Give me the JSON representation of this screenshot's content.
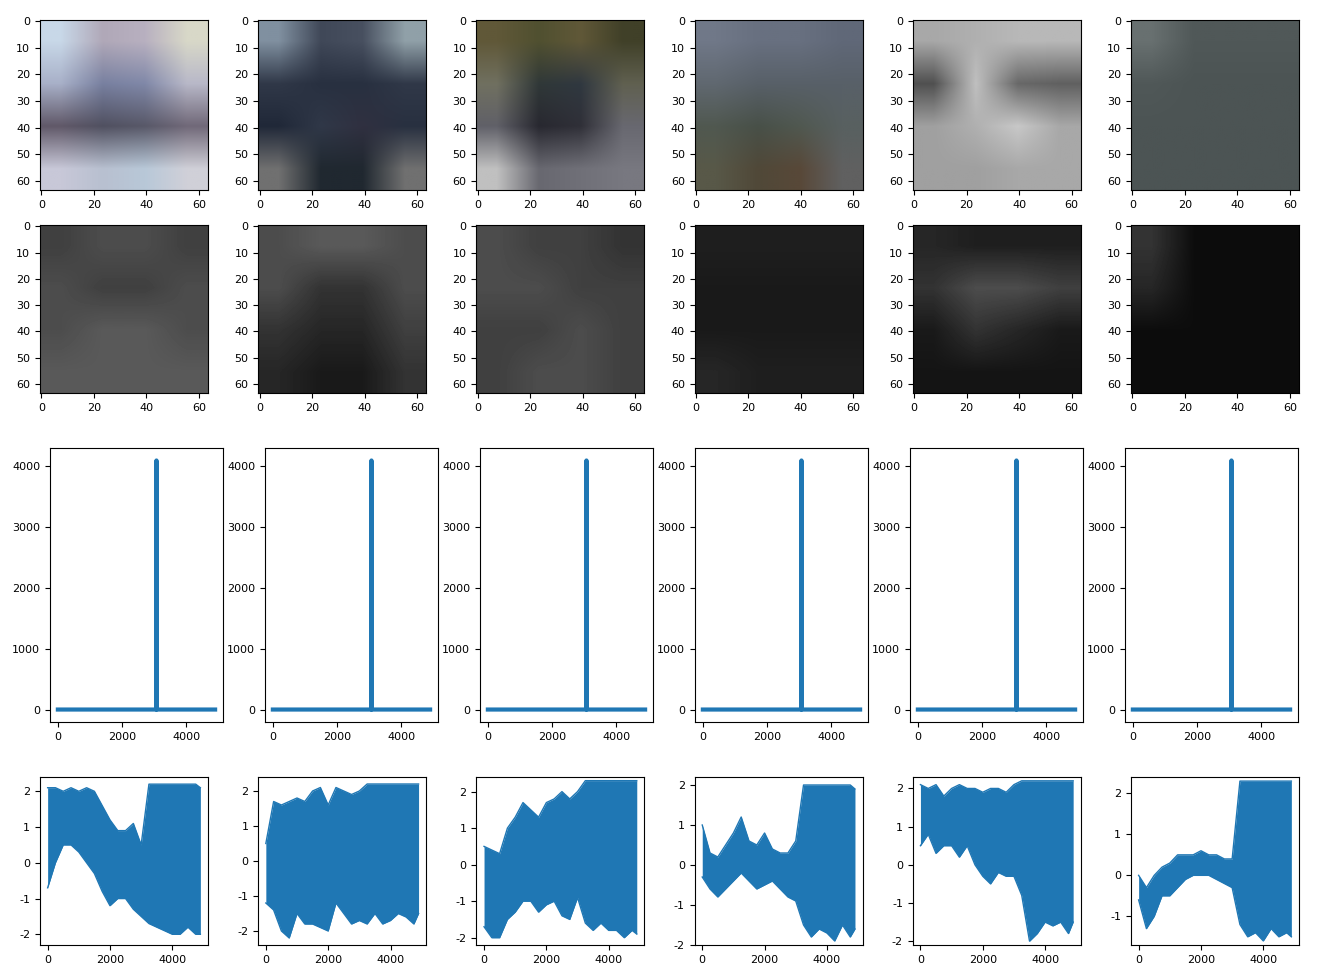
{
  "chart_data": [
    {
      "type": "image",
      "cells": [
        [
          "#c8d8e8",
          "#b0a8b8",
          "#b8b0c0",
          "#d8d8c8"
        ],
        [
          "#a8b0c8",
          "#7880a0",
          "#8088a8",
          "#b8b8c8"
        ],
        [
          "#605868",
          "#505060",
          "#585868",
          "#706878"
        ],
        [
          "#c8c8d8",
          "#b8c0d0",
          "#b8c8d8",
          "#d0d0d8"
        ]
      ],
      "xlim": [
        -0.5,
        63.5
      ],
      "ylim": [
        63.5,
        -0.5
      ],
      "xticks": [
        0,
        20,
        40,
        60
      ],
      "yticks": [
        0,
        10,
        20,
        30,
        40,
        50,
        60
      ]
    },
    {
      "type": "image",
      "cells": [
        [
          "#8090a0",
          "#404858",
          "#485060",
          "#90a0a8"
        ],
        [
          "#303848",
          "#283040",
          "#283040",
          "#303848"
        ],
        [
          "#202838",
          "#303848",
          "#303040",
          "#283040"
        ],
        [
          "#707070",
          "#202830",
          "#202830",
          "#707070"
        ]
      ],
      "xlim": [
        -0.5,
        63.5
      ],
      "ylim": [
        63.5,
        -0.5
      ],
      "xticks": [
        0,
        20,
        40,
        60
      ],
      "yticks": [
        0,
        10,
        20,
        30,
        40,
        50,
        60
      ]
    },
    {
      "type": "image",
      "cells": [
        [
          "#605838",
          "#505030",
          "#605838",
          "#404028"
        ],
        [
          "#707060",
          "#303838",
          "#303840",
          "#606050"
        ],
        [
          "#606068",
          "#282830",
          "#303038",
          "#686870"
        ],
        [
          "#c0c0c0",
          "#686870",
          "#707078",
          "#787880"
        ]
      ],
      "xlim": [
        -0.5,
        63.5
      ],
      "ylim": [
        63.5,
        -0.5
      ],
      "xticks": [
        0,
        20,
        40,
        60
      ],
      "yticks": [
        0,
        10,
        20,
        30,
        40,
        50,
        60
      ]
    },
    {
      "type": "image",
      "cells": [
        [
          "#707888",
          "#687080",
          "#687080",
          "#606878"
        ],
        [
          "#606870",
          "#586068",
          "#586068",
          "#586068"
        ],
        [
          "#505850",
          "#485048",
          "#505850",
          "#586060"
        ],
        [
          "#585848",
          "#504838",
          "#584838",
          "#606060"
        ]
      ],
      "xlim": [
        -0.5,
        63.5
      ],
      "ylim": [
        63.5,
        -0.5
      ],
      "xticks": [
        0,
        20,
        40,
        60
      ],
      "yticks": [
        0,
        10,
        20,
        30,
        40,
        50,
        60
      ]
    },
    {
      "type": "image",
      "cells": [
        [
          "#a8a8a8",
          "#b0b0b0",
          "#b8b8b8",
          "#b8b8b8"
        ],
        [
          "#505050",
          "#c0c0c0",
          "#686868",
          "#606060"
        ],
        [
          "#a0a0a0",
          "#b0b0b0",
          "#c8c8c8",
          "#a8a8a8"
        ],
        [
          "#a0a0a0",
          "#a0a0a0",
          "#a8a8a8",
          "#a8a8a8"
        ]
      ],
      "xlim": [
        -0.5,
        63.5
      ],
      "ylim": [
        63.5,
        -0.5
      ],
      "xticks": [
        0,
        20,
        40,
        60
      ],
      "yticks": [
        0,
        10,
        20,
        30,
        40,
        50,
        60
      ]
    },
    {
      "type": "image",
      "cells": [
        [
          "#687070",
          "#505858",
          "#505858",
          "#505858"
        ],
        [
          "#505858",
          "#4c5454",
          "#4c5454",
          "#4c5454"
        ],
        [
          "#4c5454",
          "#4c5454",
          "#4c5454",
          "#4c5454"
        ],
        [
          "#4c5454",
          "#4c5454",
          "#4c5454",
          "#4c5454"
        ]
      ],
      "xlim": [
        -0.5,
        63.5
      ],
      "ylim": [
        63.5,
        -0.5
      ],
      "xticks": [
        0,
        20,
        40,
        60
      ],
      "yticks": [
        0,
        10,
        20,
        30,
        40,
        50,
        60
      ]
    },
    {
      "type": "heatmap",
      "color": "gray",
      "value_range": [
        0,
        1
      ],
      "cells": [
        [
          0.25,
          0.3,
          0.3,
          0.25
        ],
        [
          0.3,
          0.25,
          0.25,
          0.3
        ],
        [
          0.3,
          0.35,
          0.35,
          0.3
        ],
        [
          0.35,
          0.35,
          0.35,
          0.35
        ]
      ],
      "xlim": [
        -0.5,
        63.5
      ],
      "ylim": [
        63.5,
        -0.5
      ],
      "xticks": [
        0,
        20,
        40,
        60
      ],
      "yticks": [
        0,
        10,
        20,
        30,
        40,
        50,
        60
      ]
    },
    {
      "type": "heatmap",
      "color": "gray",
      "value_range": [
        0,
        1
      ],
      "cells": [
        [
          0.3,
          0.35,
          0.35,
          0.3
        ],
        [
          0.3,
          0.2,
          0.2,
          0.3
        ],
        [
          0.2,
          0.15,
          0.15,
          0.25
        ],
        [
          0.15,
          0.1,
          0.1,
          0.2
        ]
      ],
      "xlim": [
        -0.5,
        63.5
      ],
      "ylim": [
        63.5,
        -0.5
      ],
      "xticks": [
        0,
        20,
        40,
        60
      ],
      "yticks": [
        0,
        10,
        20,
        30,
        40,
        50,
        60
      ]
    },
    {
      "type": "heatmap",
      "color": "gray",
      "value_range": [
        0,
        1
      ],
      "cells": [
        [
          0.3,
          0.25,
          0.25,
          0.2
        ],
        [
          0.3,
          0.3,
          0.25,
          0.25
        ],
        [
          0.25,
          0.25,
          0.3,
          0.25
        ],
        [
          0.25,
          0.3,
          0.3,
          0.25
        ]
      ],
      "xlim": [
        -0.5,
        63.5
      ],
      "ylim": [
        63.5,
        -0.5
      ],
      "xticks": [
        0,
        20,
        40,
        60
      ],
      "yticks": [
        0,
        10,
        20,
        30,
        40,
        50,
        60
      ]
    },
    {
      "type": "heatmap",
      "color": "gray",
      "value_range": [
        0,
        1
      ],
      "cells": [
        [
          0.12,
          0.12,
          0.12,
          0.12
        ],
        [
          0.1,
          0.1,
          0.1,
          0.1
        ],
        [
          0.1,
          0.1,
          0.1,
          0.1
        ],
        [
          0.15,
          0.12,
          0.12,
          0.12
        ]
      ],
      "xlim": [
        -0.5,
        63.5
      ],
      "ylim": [
        63.5,
        -0.5
      ],
      "xticks": [
        0,
        20,
        40,
        60
      ],
      "yticks": [
        0,
        10,
        20,
        30,
        40,
        50,
        60
      ]
    },
    {
      "type": "heatmap",
      "color": "gray",
      "value_range": [
        0,
        1
      ],
      "cells": [
        [
          0.15,
          0.12,
          0.12,
          0.12
        ],
        [
          0.2,
          0.3,
          0.3,
          0.25
        ],
        [
          0.1,
          0.2,
          0.15,
          0.1
        ],
        [
          0.08,
          0.08,
          0.08,
          0.08
        ]
      ],
      "xlim": [
        -0.5,
        63.5
      ],
      "ylim": [
        63.5,
        -0.5
      ],
      "xticks": [
        0,
        20,
        40,
        60
      ],
      "yticks": [
        0,
        10,
        20,
        30,
        40,
        50,
        60
      ]
    },
    {
      "type": "heatmap",
      "color": "gray",
      "value_range": [
        0,
        1
      ],
      "cells": [
        [
          0.2,
          0.05,
          0.05,
          0.05
        ],
        [
          0.15,
          0.05,
          0.05,
          0.05
        ],
        [
          0.05,
          0.05,
          0.05,
          0.05
        ],
        [
          0.05,
          0.05,
          0.05,
          0.05
        ]
      ],
      "xlim": [
        -0.5,
        63.5
      ],
      "ylim": [
        63.5,
        -0.5
      ],
      "xticks": [
        0,
        20,
        40,
        60
      ],
      "yticks": [
        0,
        10,
        20,
        30,
        40,
        50,
        60
      ]
    },
    {
      "type": "line",
      "color": "#1f77b4",
      "x": [
        0,
        3071,
        3072,
        3073,
        4899
      ],
      "values": [
        0,
        0,
        4096,
        0,
        0
      ],
      "xlim": [
        -245,
        5145
      ],
      "ylim": [
        -205,
        4301
      ],
      "xticks": [
        0,
        2000,
        4000
      ],
      "yticks": [
        0,
        1000,
        2000,
        3000,
        4000
      ]
    },
    {
      "type": "line",
      "color": "#1f77b4",
      "x": [
        0,
        3071,
        3072,
        3073,
        4899
      ],
      "values": [
        0,
        0,
        4096,
        0,
        0
      ],
      "xlim": [
        -245,
        5145
      ],
      "ylim": [
        -205,
        4301
      ],
      "xticks": [
        0,
        2000,
        4000
      ],
      "yticks": [
        0,
        1000,
        2000,
        3000,
        4000
      ]
    },
    {
      "type": "line",
      "color": "#1f77b4",
      "x": [
        0,
        3071,
        3072,
        3073,
        4899
      ],
      "values": [
        0,
        0,
        4096,
        0,
        0
      ],
      "xlim": [
        -245,
        5145
      ],
      "ylim": [
        -205,
        4301
      ],
      "xticks": [
        0,
        2000,
        4000
      ],
      "yticks": [
        0,
        1000,
        2000,
        3000,
        4000
      ]
    },
    {
      "type": "line",
      "color": "#1f77b4",
      "x": [
        0,
        3071,
        3072,
        3073,
        4899
      ],
      "values": [
        0,
        0,
        4096,
        0,
        0
      ],
      "xlim": [
        -245,
        5145
      ],
      "ylim": [
        -205,
        4301
      ],
      "xticks": [
        0,
        2000,
        4000
      ],
      "yticks": [
        0,
        1000,
        2000,
        3000,
        4000
      ]
    },
    {
      "type": "line",
      "color": "#1f77b4",
      "x": [
        0,
        3071,
        3072,
        3073,
        4899
      ],
      "values": [
        0,
        0,
        4096,
        0,
        0
      ],
      "xlim": [
        -245,
        5145
      ],
      "ylim": [
        -205,
        4301
      ],
      "xticks": [
        0,
        2000,
        4000
      ],
      "yticks": [
        0,
        1000,
        2000,
        3000,
        4000
      ]
    },
    {
      "type": "line",
      "color": "#1f77b4",
      "x": [
        0,
        3071,
        3072,
        3073,
        4899
      ],
      "values": [
        0,
        0,
        4096,
        0,
        0
      ],
      "xlim": [
        -245,
        5145
      ],
      "ylim": [
        -205,
        4301
      ],
      "xticks": [
        0,
        2000,
        4000
      ],
      "yticks": [
        0,
        1000,
        2000,
        3000,
        4000
      ]
    },
    {
      "type": "range",
      "color": "#1f77b4",
      "x": [
        0,
        250,
        500,
        750,
        1000,
        1250,
        1500,
        1750,
        2000,
        2250,
        2500,
        2750,
        3000,
        3250,
        3500,
        3750,
        4000,
        4250,
        4500,
        4750,
        4900
      ],
      "high": [
        2.1,
        2.1,
        2.0,
        2.1,
        2.0,
        2.1,
        2.0,
        1.6,
        1.2,
        0.9,
        0.9,
        1.1,
        0.5,
        2.2,
        2.2,
        2.2,
        2.2,
        2.2,
        2.2,
        2.2,
        2.1
      ],
      "low": [
        -0.7,
        0.0,
        0.5,
        0.5,
        0.3,
        0.0,
        -0.3,
        -0.8,
        -1.2,
        -1.0,
        -1.0,
        -1.3,
        -1.5,
        -1.7,
        -1.8,
        -1.9,
        -2.0,
        -2.0,
        -1.8,
        -2.0,
        -2.0
      ],
      "xlim": [
        -245,
        5145
      ],
      "ylim": [
        -2.3,
        2.4
      ],
      "xticks": [
        0,
        2000,
        4000
      ],
      "yticks": [
        -2,
        -1,
        0,
        1,
        2
      ]
    },
    {
      "type": "range",
      "color": "#1f77b4",
      "x": [
        0,
        250,
        500,
        750,
        1000,
        1250,
        1500,
        1750,
        2000,
        2250,
        2500,
        2750,
        3000,
        3250,
        3500,
        3750,
        4000,
        4250,
        4500,
        4750,
        4900
      ],
      "high": [
        0.5,
        1.7,
        1.6,
        1.7,
        1.8,
        1.7,
        2.0,
        2.1,
        1.6,
        2.1,
        2.0,
        1.9,
        2.0,
        2.2,
        2.2,
        2.2,
        2.2,
        2.2,
        2.2,
        2.2,
        2.2
      ],
      "low": [
        -1.2,
        -1.4,
        -2.0,
        -2.2,
        -1.5,
        -1.8,
        -1.8,
        -1.9,
        -2.0,
        -1.2,
        -1.5,
        -1.8,
        -1.7,
        -1.8,
        -1.5,
        -1.8,
        -1.7,
        -1.5,
        -1.6,
        -1.8,
        -1.5
      ],
      "xlim": [
        -245,
        5145
      ],
      "ylim": [
        -2.4,
        2.4
      ],
      "xticks": [
        0,
        2000,
        4000
      ],
      "yticks": [
        -2,
        -1,
        0,
        1,
        2
      ]
    },
    {
      "type": "range",
      "color": "#1f77b4",
      "x": [
        0,
        250,
        500,
        750,
        1000,
        1250,
        1500,
        1750,
        2000,
        2250,
        2500,
        2750,
        3000,
        3250,
        3500,
        3750,
        4000,
        4250,
        4500,
        4750,
        4900
      ],
      "high": [
        0.5,
        0.4,
        0.3,
        1.0,
        1.3,
        1.7,
        1.5,
        1.3,
        1.7,
        1.8,
        2.0,
        1.8,
        2.0,
        2.3,
        2.3,
        2.3,
        2.3,
        2.3,
        2.3,
        2.3,
        2.3
      ],
      "low": [
        -1.7,
        -2.0,
        -2.0,
        -1.5,
        -1.3,
        -1.0,
        -1.0,
        -1.3,
        -1.1,
        -1.0,
        -1.4,
        -1.5,
        -0.9,
        -1.6,
        -1.8,
        -1.6,
        -1.8,
        -1.8,
        -2.0,
        -1.8,
        -1.9
      ],
      "xlim": [
        -245,
        5145
      ],
      "ylim": [
        -2.2,
        2.4
      ],
      "xticks": [
        0,
        2000,
        4000
      ],
      "yticks": [
        -2,
        -1,
        0,
        1,
        2
      ]
    },
    {
      "type": "range",
      "color": "#1f77b4",
      "x": [
        0,
        250,
        500,
        750,
        1000,
        1250,
        1500,
        1750,
        2000,
        2250,
        2500,
        2750,
        3000,
        3250,
        3500,
        3750,
        4000,
        4250,
        4500,
        4750,
        4900
      ],
      "high": [
        1.0,
        0.3,
        0.2,
        0.5,
        0.8,
        1.2,
        0.6,
        0.5,
        0.8,
        0.4,
        0.3,
        0.3,
        0.6,
        2.0,
        2.0,
        2.0,
        2.0,
        2.0,
        2.0,
        2.0,
        1.9
      ],
      "low": [
        -0.3,
        -0.6,
        -0.8,
        -0.6,
        -0.4,
        -0.2,
        -0.4,
        -0.6,
        -0.5,
        -0.4,
        -0.6,
        -0.8,
        -0.9,
        -1.5,
        -1.8,
        -1.6,
        -1.7,
        -1.9,
        -1.5,
        -1.8,
        -1.6
      ],
      "xlim": [
        -245,
        5145
      ],
      "ylim": [
        -2.0,
        2.2
      ],
      "xticks": [
        0,
        2000,
        4000
      ],
      "yticks": [
        -2,
        -1,
        0,
        1,
        2
      ]
    },
    {
      "type": "range",
      "color": "#1f77b4",
      "x": [
        0,
        250,
        500,
        750,
        1000,
        1250,
        1500,
        1750,
        2000,
        2250,
        2500,
        2750,
        3000,
        3250,
        3500,
        3750,
        4000,
        4250,
        4500,
        4750,
        4900
      ],
      "high": [
        2.1,
        2.0,
        2.1,
        1.8,
        2.0,
        2.1,
        2.0,
        2.0,
        1.9,
        2.0,
        2.0,
        1.9,
        2.1,
        2.2,
        2.2,
        2.2,
        2.2,
        2.2,
        2.2,
        2.2,
        2.2
      ],
      "low": [
        0.5,
        0.8,
        0.3,
        0.5,
        0.5,
        0.2,
        0.5,
        0.0,
        -0.3,
        -0.5,
        -0.2,
        -0.3,
        -0.3,
        -0.8,
        -2.0,
        -1.8,
        -1.5,
        -1.6,
        -1.5,
        -1.8,
        -1.5
      ],
      "xlim": [
        -245,
        5145
      ],
      "ylim": [
        -2.1,
        2.3
      ],
      "xticks": [
        0,
        2000,
        4000
      ],
      "yticks": [
        -2,
        -1,
        0,
        1,
        2
      ]
    },
    {
      "type": "range",
      "color": "#1f77b4",
      "x": [
        0,
        250,
        500,
        750,
        1000,
        1250,
        1500,
        1750,
        2000,
        2250,
        2500,
        2750,
        3000,
        3250,
        3500,
        3750,
        4000,
        4250,
        4500,
        4750,
        4900
      ],
      "high": [
        0.0,
        -0.3,
        0.0,
        0.2,
        0.3,
        0.5,
        0.5,
        0.5,
        0.6,
        0.5,
        0.5,
        0.4,
        0.4,
        2.3,
        2.3,
        2.3,
        2.3,
        2.3,
        2.3,
        2.3,
        2.3
      ],
      "low": [
        -0.6,
        -1.3,
        -1.0,
        -0.5,
        -0.5,
        -0.3,
        -0.1,
        0.0,
        0.0,
        0.0,
        -0.1,
        -0.2,
        -0.3,
        -1.2,
        -1.5,
        -1.4,
        -1.6,
        -1.3,
        -1.5,
        -1.4,
        -1.5
      ],
      "xlim": [
        -245,
        5145
      ],
      "ylim": [
        -1.7,
        2.4
      ],
      "xticks": [
        0,
        2000,
        4000
      ],
      "yticks": [
        -1,
        0,
        1,
        2
      ]
    }
  ]
}
